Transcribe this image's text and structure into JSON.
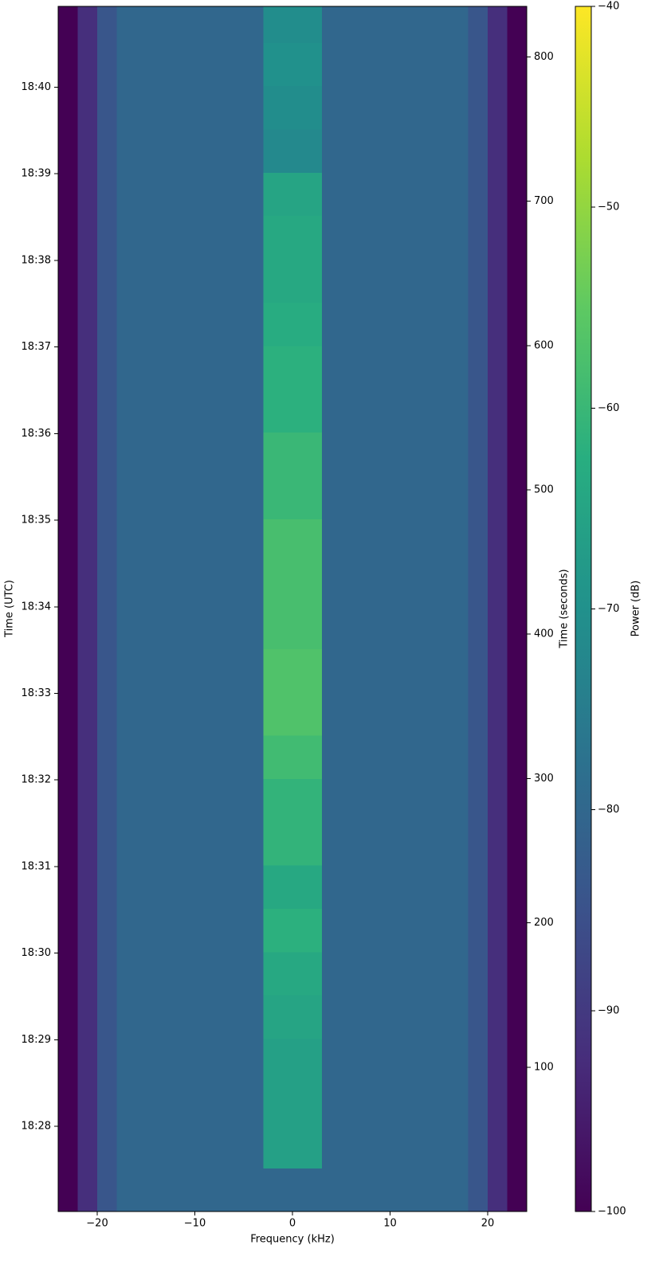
{
  "chart_data": {
    "type": "heatmap",
    "xlabel": "Frequency (kHz)",
    "ylabel": "Time (UTC)",
    "y2label": "Time (seconds)",
    "colorbar_label": "Power (dB)",
    "colormap": "viridis",
    "xlim": [
      -24,
      24
    ],
    "xticks": [
      {
        "value": -20,
        "label": "−20"
      },
      {
        "value": -10,
        "label": "−10"
      },
      0,
      10,
      20
    ],
    "ylim": [
      0,
      835
    ],
    "yticks": [
      {
        "value": 59,
        "label": "18:28"
      },
      {
        "value": 119,
        "label": "18:29"
      },
      {
        "value": 179,
        "label": "18:30"
      },
      {
        "value": 239,
        "label": "18:31"
      },
      {
        "value": 299,
        "label": "18:32"
      },
      {
        "value": 359,
        "label": "18:33"
      },
      {
        "value": 419,
        "label": "18:34"
      },
      {
        "value": 479,
        "label": "18:35"
      },
      {
        "value": 539,
        "label": "18:36"
      },
      {
        "value": 599,
        "label": "18:37"
      },
      {
        "value": 659,
        "label": "18:38"
      },
      {
        "value": 719,
        "label": "18:39"
      },
      {
        "value": 779,
        "label": "18:40"
      }
    ],
    "y2lim": [
      0,
      835
    ],
    "y2ticks": [
      100,
      200,
      300,
      400,
      500,
      600,
      700,
      800
    ],
    "clim": [
      -100,
      -40
    ],
    "cticks": [
      {
        "value": -100,
        "label": "−100"
      },
      {
        "value": -90,
        "label": "−90"
      },
      {
        "value": -80,
        "label": "−80"
      },
      {
        "value": -70,
        "label": "−70"
      },
      {
        "value": -60,
        "label": "−60"
      },
      {
        "value": -50,
        "label": "−50"
      },
      {
        "value": -40,
        "label": "−40"
      }
    ],
    "x_edges": [
      -24,
      -22,
      -20,
      -18,
      -3,
      3,
      18,
      20,
      22,
      24
    ],
    "y_edges": [
      0,
      30,
      60,
      90,
      120,
      150,
      180,
      210,
      240,
      270,
      300,
      330,
      360,
      390,
      420,
      450,
      480,
      510,
      540,
      570,
      600,
      630,
      660,
      690,
      720,
      750,
      780,
      810,
      835
    ],
    "z": [
      [
        -100,
        -92,
        -84,
        -80,
        -80,
        -80,
        -84,
        -92,
        -100
      ],
      [
        -100,
        -92,
        -84,
        -80,
        -66,
        -80,
        -84,
        -92,
        -100
      ],
      [
        -100,
        -92,
        -84,
        -80,
        -66,
        -80,
        -84,
        -92,
        -100
      ],
      [
        -100,
        -92,
        -84,
        -80,
        -66,
        -80,
        -84,
        -92,
        -100
      ],
      [
        -100,
        -92,
        -84,
        -80,
        -65,
        -80,
        -84,
        -92,
        -100
      ],
      [
        -100,
        -92,
        -84,
        -80,
        -64,
        -80,
        -84,
        -92,
        -100
      ],
      [
        -100,
        -92,
        -84,
        -80,
        -62,
        -80,
        -84,
        -92,
        -100
      ],
      [
        -100,
        -92,
        -84,
        -80,
        -64,
        -80,
        -84,
        -92,
        -100
      ],
      [
        -100,
        -92,
        -84,
        -80,
        -61,
        -80,
        -84,
        -92,
        -100
      ],
      [
        -100,
        -92,
        -84,
        -80,
        -61,
        -80,
        -84,
        -92,
        -100
      ],
      [
        -100,
        -92,
        -84,
        -80,
        -59,
        -80,
        -84,
        -92,
        -100
      ],
      [
        -100,
        -92,
        -84,
        -80,
        -57,
        -80,
        -84,
        -92,
        -100
      ],
      [
        -100,
        -92,
        -84,
        -80,
        -57,
        -80,
        -84,
        -92,
        -100
      ],
      [
        -100,
        -92,
        -84,
        -80,
        -58,
        -80,
        -84,
        -92,
        -100
      ],
      [
        -100,
        -92,
        -84,
        -80,
        -58,
        -80,
        -84,
        -92,
        -100
      ],
      [
        -100,
        -92,
        -84,
        -80,
        -58,
        -80,
        -84,
        -92,
        -100
      ],
      [
        -100,
        -92,
        -84,
        -80,
        -60,
        -80,
        -84,
        -92,
        -100
      ],
      [
        -100,
        -92,
        -84,
        -80,
        -60,
        -80,
        -84,
        -92,
        -100
      ],
      [
        -100,
        -92,
        -84,
        -80,
        -62,
        -80,
        -84,
        -92,
        -100
      ],
      [
        -100,
        -92,
        -84,
        -80,
        -62,
        -80,
        -84,
        -92,
        -100
      ],
      [
        -100,
        -92,
        -84,
        -80,
        -63,
        -80,
        -84,
        -92,
        -100
      ],
      [
        -100,
        -92,
        -84,
        -80,
        -64,
        -80,
        -84,
        -92,
        -100
      ],
      [
        -100,
        -92,
        -84,
        -80,
        -64,
        -80,
        -84,
        -92,
        -100
      ],
      [
        -100,
        -92,
        -84,
        -80,
        -65,
        -80,
        -84,
        -92,
        -100
      ],
      [
        -100,
        -92,
        -84,
        -80,
        -72,
        -80,
        -84,
        -92,
        -100
      ],
      [
        -100,
        -92,
        -84,
        -80,
        -71,
        -80,
        -84,
        -92,
        -100
      ],
      [
        -100,
        -92,
        -84,
        -80,
        -70,
        -80,
        -84,
        -92,
        -100
      ],
      [
        -100,
        -92,
        -84,
        -80,
        -71,
        -80,
        -84,
        -92,
        -100
      ]
    ]
  }
}
